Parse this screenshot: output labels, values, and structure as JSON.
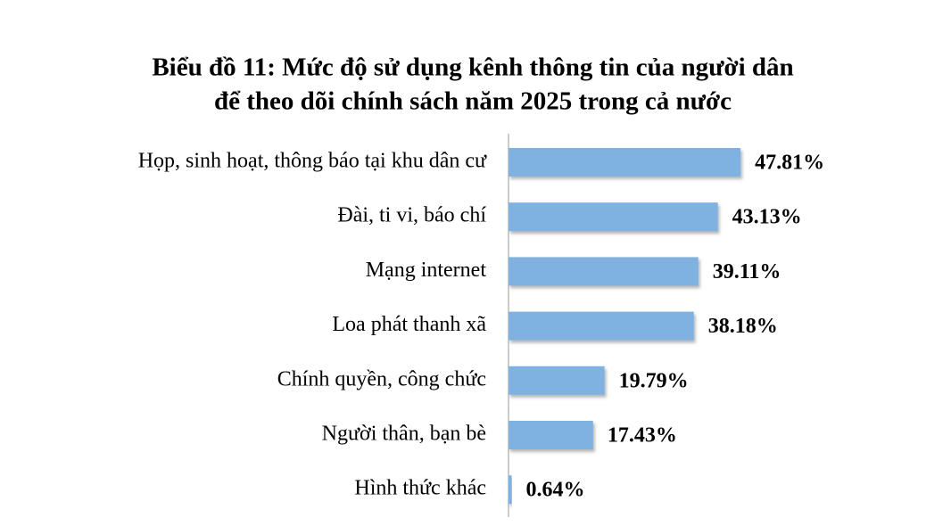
{
  "chart_data": {
    "type": "bar",
    "orientation": "horizontal",
    "title": [
      "Biểu đồ 11: Mức độ sử dụng kênh thông tin của người dân",
      "để theo dõi chính sách năm 2025 trong cả nước"
    ],
    "categories": [
      "Họp, sinh hoạt, thông báo tại khu dân cư",
      "Đài, ti vi, báo chí",
      "Mạng internet",
      "Loa phát thanh xã",
      "Chính quyền, công chức",
      "Người thân, bạn bè",
      "Hình thức khác"
    ],
    "values": [
      47.81,
      43.13,
      39.11,
      38.18,
      19.79,
      17.43,
      0.64
    ],
    "value_labels": [
      "47.81%",
      "43.13%",
      "39.11%",
      "38.18%",
      "19.79%",
      "17.43%",
      "0.64%"
    ],
    "color": "#7fb2e0"
  }
}
